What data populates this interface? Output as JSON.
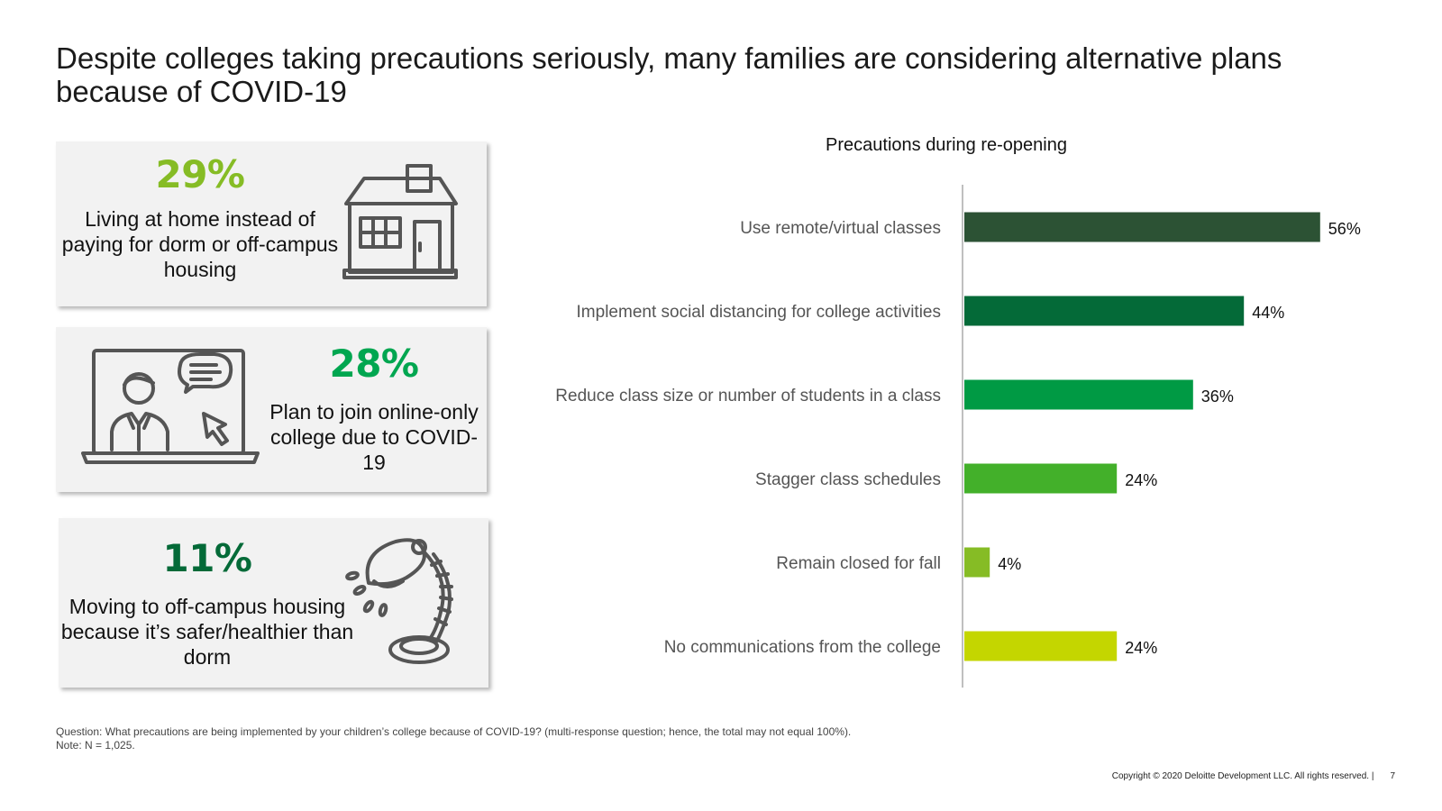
{
  "page": {
    "title": "Despite colleges taking precautions seriously, many families are considering alternative plans because of COVID-19"
  },
  "cards": [
    {
      "value": "29%",
      "text": "Living at home instead of paying for dorm or off-campus housing",
      "icon": "house-icon",
      "color": "#86bc25"
    },
    {
      "value": "28%",
      "text": "Plan to join online-only college due to COVID-19",
      "icon": "laptop-video-call-icon",
      "color": "#00a650"
    },
    {
      "value": "11%",
      "text": "Moving to off-campus housing because it’s safer/healthier than dorm",
      "icon": "desk-lamp-icon",
      "color": "#046a38"
    }
  ],
  "chart_data": {
    "type": "bar",
    "orientation": "horizontal",
    "title": "Precautions during re-opening",
    "categories": [
      "Use remote/virtual classes",
      "Implement social distancing for college activities",
      "Reduce class size or number of students in a class",
      "Stagger class schedules",
      "Remain closed for fall",
      "No communications from the college"
    ],
    "values": [
      56,
      44,
      36,
      24,
      4,
      24
    ],
    "value_labels": [
      "56%",
      "44%",
      "36%",
      "24%",
      "4%",
      "24%"
    ],
    "colors": [
      "#2c5234",
      "#046a38",
      "#009a44",
      "#43b02a",
      "#86bc25",
      "#c4d600"
    ],
    "xlim": [
      0,
      60
    ],
    "xlabel": "",
    "ylabel": "",
    "grid": false,
    "legend": "none"
  },
  "footnote": {
    "question": "Question: What precautions are being implemented by your children’s college because of COVID-19? (multi-response question; hence, the total may not equal 100%).",
    "note": "Note: N = 1,025."
  },
  "footer": {
    "copyright": "Copyright © 2020 Deloitte Development LLC. All rights reserved.  |",
    "page_number": "7"
  }
}
